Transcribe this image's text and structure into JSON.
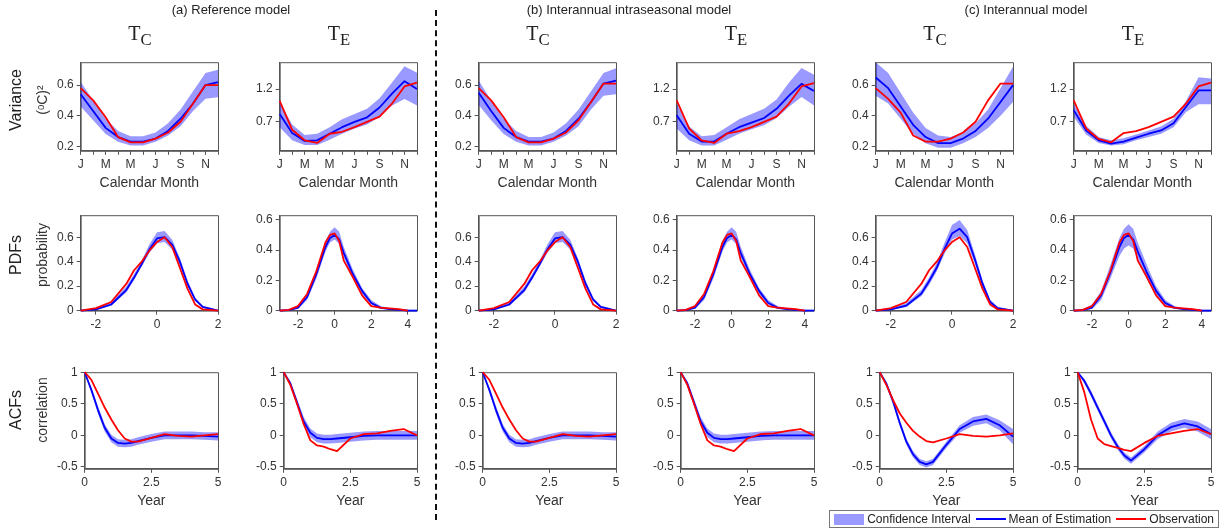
{
  "chart_data": [
    {
      "type": "line",
      "subtitle": "(a) Reference model",
      "title": "T$_{C}$",
      "xlabel": "Calendar Month",
      "ylabel": "(ᵒC)²",
      "annotations": [
        "Variance"
      ],
      "categories": [
        "J",
        null,
        "M",
        null,
        "M",
        null,
        "J",
        null,
        "S",
        null,
        "N",
        null
      ],
      "ylim": [
        0.17,
        0.75
      ],
      "yticks": [
        0.2,
        0.4,
        0.6
      ],
      "series": [
        {
          "color": "#0000ff",
          "values": [
            0.54,
            0.43,
            0.32,
            0.26,
            0.23,
            0.23,
            0.25,
            0.3,
            0.38,
            0.48,
            0.6,
            0.62
          ],
          "lower": [
            0.46,
            0.37,
            0.28,
            0.23,
            0.205,
            0.205,
            0.23,
            0.27,
            0.33,
            0.43,
            0.51,
            0.52
          ],
          "upper": [
            0.62,
            0.5,
            0.38,
            0.3,
            0.265,
            0.265,
            0.29,
            0.35,
            0.44,
            0.56,
            0.68,
            0.7
          ]
        },
        {
          "color": "#ff0000",
          "values": [
            0.58,
            0.5,
            0.39,
            0.26,
            0.225,
            0.225,
            0.25,
            0.29,
            0.36,
            0.48,
            0.6,
            0.6
          ]
        }
      ]
    },
    {
      "type": "line",
      "title": "T$_{E}$",
      "xlabel": "Calendar Month",
      "categories": [
        "J",
        null,
        "M",
        null,
        "M",
        null,
        "J",
        null,
        "S",
        null,
        "N",
        null
      ],
      "ylim": [
        0.26,
        1.61
      ],
      "yticks": [
        0.7,
        1.2
      ],
      "series": [
        {
          "color": "#0000ff",
          "values": [
            0.82,
            0.53,
            0.41,
            0.42,
            0.52,
            0.62,
            0.7,
            0.77,
            0.92,
            1.13,
            1.32,
            1.2
          ],
          "lower": [
            0.62,
            0.42,
            0.35,
            0.35,
            0.43,
            0.52,
            0.6,
            0.66,
            0.78,
            0.95,
            1.05,
            0.95
          ],
          "upper": [
            1.0,
            0.66,
            0.5,
            0.52,
            0.62,
            0.74,
            0.82,
            0.9,
            1.06,
            1.3,
            1.55,
            1.45
          ]
        },
        {
          "color": "#ff0000",
          "values": [
            1.02,
            0.58,
            0.42,
            0.38,
            0.52,
            0.55,
            0.62,
            0.7,
            0.78,
            0.98,
            1.24,
            1.3
          ]
        }
      ]
    },
    {
      "type": "line",
      "subtitle": "(b) Interannual intraseasonal model",
      "title": "T$_{C}$",
      "xlabel": "Calendar Month",
      "categories": [
        "J",
        null,
        "M",
        null,
        "M",
        null,
        "J",
        null,
        "S",
        null,
        "N",
        null
      ],
      "ylim": [
        0.17,
        0.75
      ],
      "yticks": [
        0.2,
        0.4,
        0.6
      ],
      "series": [
        {
          "color": "#0000ff",
          "values": [
            0.55,
            0.43,
            0.32,
            0.26,
            0.23,
            0.23,
            0.25,
            0.3,
            0.38,
            0.49,
            0.61,
            0.63
          ],
          "lower": [
            0.47,
            0.37,
            0.28,
            0.23,
            0.205,
            0.205,
            0.23,
            0.27,
            0.33,
            0.44,
            0.53,
            0.54
          ],
          "upper": [
            0.63,
            0.5,
            0.38,
            0.3,
            0.26,
            0.26,
            0.29,
            0.35,
            0.44,
            0.56,
            0.68,
            0.71
          ]
        },
        {
          "color": "#ff0000",
          "values": [
            0.58,
            0.5,
            0.39,
            0.26,
            0.225,
            0.225,
            0.25,
            0.29,
            0.37,
            0.49,
            0.61,
            0.61
          ]
        }
      ]
    },
    {
      "type": "line",
      "title": "T$_{E}$",
      "xlabel": "Calendar Month",
      "categories": [
        "J",
        null,
        "M",
        null,
        "M",
        null,
        "J",
        null,
        "S",
        null,
        "N",
        null
      ],
      "ylim": [
        0.26,
        1.61
      ],
      "yticks": [
        0.7,
        1.2
      ],
      "series": [
        {
          "color": "#0000ff",
          "values": [
            0.8,
            0.52,
            0.4,
            0.4,
            0.52,
            0.62,
            0.69,
            0.76,
            0.9,
            1.1,
            1.28,
            1.17
          ],
          "lower": [
            0.6,
            0.42,
            0.34,
            0.34,
            0.43,
            0.52,
            0.59,
            0.65,
            0.76,
            0.93,
            1.08,
            0.95
          ],
          "upper": [
            0.98,
            0.63,
            0.48,
            0.5,
            0.62,
            0.74,
            0.82,
            0.9,
            1.04,
            1.3,
            1.52,
            1.42
          ]
        },
        {
          "color": "#ff0000",
          "values": [
            1.03,
            0.6,
            0.42,
            0.38,
            0.52,
            0.56,
            0.62,
            0.7,
            0.78,
            0.98,
            1.24,
            1.29
          ]
        }
      ]
    },
    {
      "type": "line",
      "subtitle": "(c) Interannual model",
      "title": "T$_{C}$",
      "xlabel": "Calendar Month",
      "categories": [
        "J",
        null,
        "M",
        null,
        "M",
        null,
        "J",
        null,
        "S",
        null,
        "N",
        null
      ],
      "ylim": [
        0.17,
        0.75
      ],
      "yticks": [
        0.2,
        0.4,
        0.6
      ],
      "series": [
        {
          "color": "#0000ff",
          "values": [
            0.65,
            0.58,
            0.46,
            0.34,
            0.26,
            0.22,
            0.22,
            0.25,
            0.3,
            0.38,
            0.49,
            0.6
          ],
          "lower": [
            0.53,
            0.48,
            0.38,
            0.28,
            0.22,
            0.19,
            0.19,
            0.22,
            0.26,
            0.32,
            0.4,
            0.49
          ],
          "upper": [
            0.75,
            0.68,
            0.55,
            0.42,
            0.32,
            0.27,
            0.26,
            0.29,
            0.35,
            0.44,
            0.58,
            0.72
          ]
        },
        {
          "color": "#ff0000",
          "values": [
            0.58,
            0.51,
            0.42,
            0.27,
            0.23,
            0.23,
            0.25,
            0.29,
            0.36,
            0.5,
            0.61,
            0.61
          ]
        }
      ]
    },
    {
      "type": "line",
      "title": "T$_{E}$",
      "xlabel": "Calendar Month",
      "categories": [
        "J",
        null,
        "M",
        null,
        "M",
        null,
        "J",
        null,
        "S",
        null,
        "N",
        null
      ],
      "ylim": [
        0.26,
        1.61
      ],
      "yticks": [
        0.7,
        1.2
      ],
      "series": [
        {
          "color": "#0000ff",
          "values": [
            0.88,
            0.57,
            0.42,
            0.37,
            0.4,
            0.46,
            0.52,
            0.57,
            0.68,
            0.93,
            1.18,
            1.18
          ],
          "lower": [
            0.78,
            0.51,
            0.38,
            0.34,
            0.36,
            0.42,
            0.47,
            0.52,
            0.62,
            0.85,
            0.97,
            0.97
          ],
          "upper": [
            0.97,
            0.64,
            0.47,
            0.42,
            0.45,
            0.51,
            0.57,
            0.63,
            0.75,
            1.02,
            1.38,
            1.36
          ]
        },
        {
          "color": "#ff0000",
          "values": [
            1.03,
            0.6,
            0.44,
            0.39,
            0.53,
            0.56,
            0.62,
            0.7,
            0.78,
            0.98,
            1.24,
            1.3
          ]
        }
      ]
    },
    {
      "type": "line",
      "ylabel": "probability",
      "annotations": [
        "PDFs"
      ],
      "x": [
        -2.5,
        -2,
        -1.5,
        -1,
        -0.75,
        -0.5,
        -0.25,
        0,
        0.25,
        0.5,
        0.75,
        1,
        1.25,
        1.5,
        2
      ],
      "xlim": [
        -2.5,
        2
      ],
      "xticks": [
        -2,
        0,
        2
      ],
      "ylim": [
        0,
        0.78
      ],
      "yticks": [
        0,
        0.2,
        0.4,
        0.6
      ],
      "series": [
        {
          "color": "#0000ff",
          "values": [
            0,
            0.01,
            0.05,
            0.17,
            0.27,
            0.38,
            0.5,
            0.59,
            0.6,
            0.54,
            0.4,
            0.22,
            0.09,
            0.03,
            0
          ],
          "lower": [
            0,
            0.005,
            0.04,
            0.15,
            0.25,
            0.36,
            0.47,
            0.55,
            0.56,
            0.5,
            0.37,
            0.2,
            0.08,
            0.02,
            0
          ],
          "upper": [
            0.005,
            0.02,
            0.07,
            0.2,
            0.3,
            0.41,
            0.54,
            0.64,
            0.65,
            0.58,
            0.43,
            0.25,
            0.11,
            0.04,
            0.005
          ]
        },
        {
          "color": "#ff0000",
          "values": [
            0,
            0.02,
            0.07,
            0.22,
            0.33,
            0.4,
            0.49,
            0.56,
            0.6,
            0.52,
            0.35,
            0.18,
            0.05,
            0.01,
            0
          ]
        }
      ]
    },
    {
      "type": "line",
      "x": [
        -3,
        -2.5,
        -2,
        -1.5,
        -1,
        -0.5,
        -0.25,
        0,
        0.25,
        0.5,
        1,
        1.5,
        2,
        2.5,
        3,
        3.5,
        4,
        4.5
      ],
      "xlim": [
        -3,
        4.5
      ],
      "xticks": [
        -2,
        0,
        2,
        4
      ],
      "ylim": [
        0,
        0.63
      ],
      "yticks": [
        0,
        0.2,
        0.4,
        0.6
      ],
      "series": [
        {
          "color": "#0000ff",
          "values": [
            0,
            0.003,
            0.02,
            0.09,
            0.24,
            0.42,
            0.48,
            0.5,
            0.47,
            0.38,
            0.24,
            0.13,
            0.05,
            0.02,
            0.01,
            0.005,
            0,
            0
          ],
          "lower": [
            0,
            0,
            0.01,
            0.07,
            0.21,
            0.39,
            0.45,
            0.47,
            0.44,
            0.35,
            0.21,
            0.11,
            0.04,
            0.01,
            0.005,
            0,
            0,
            0
          ],
          "upper": [
            0.005,
            0.01,
            0.03,
            0.11,
            0.27,
            0.46,
            0.52,
            0.55,
            0.52,
            0.42,
            0.27,
            0.15,
            0.07,
            0.03,
            0.015,
            0.01,
            0.005,
            0.005
          ]
        },
        {
          "color": "#ff0000",
          "values": [
            0,
            0.005,
            0.03,
            0.11,
            0.26,
            0.45,
            0.5,
            0.51,
            0.46,
            0.33,
            0.22,
            0.1,
            0.03,
            0.02,
            0.015,
            0.01,
            0,
            null
          ]
        }
      ]
    },
    {
      "type": "line",
      "x": [
        -2.5,
        -2,
        -1.5,
        -1,
        -0.75,
        -0.5,
        -0.25,
        0,
        0.25,
        0.5,
        0.75,
        1,
        1.25,
        1.5,
        2
      ],
      "xlim": [
        -2.5,
        2
      ],
      "xticks": [
        -2,
        0,
        2
      ],
      "ylim": [
        0,
        0.78
      ],
      "yticks": [
        0,
        0.2,
        0.4,
        0.6
      ],
      "series": [
        {
          "color": "#0000ff",
          "values": [
            0,
            0.01,
            0.05,
            0.17,
            0.27,
            0.38,
            0.5,
            0.59,
            0.6,
            0.54,
            0.4,
            0.22,
            0.09,
            0.03,
            0
          ],
          "lower": [
            0,
            0.005,
            0.04,
            0.15,
            0.25,
            0.36,
            0.47,
            0.55,
            0.56,
            0.5,
            0.37,
            0.2,
            0.08,
            0.02,
            0
          ],
          "upper": [
            0.005,
            0.02,
            0.07,
            0.2,
            0.3,
            0.41,
            0.54,
            0.64,
            0.65,
            0.58,
            0.43,
            0.25,
            0.11,
            0.04,
            0.005
          ]
        },
        {
          "color": "#ff0000",
          "values": [
            0,
            0.02,
            0.07,
            0.22,
            0.33,
            0.4,
            0.49,
            0.56,
            0.6,
            0.52,
            0.35,
            0.18,
            0.05,
            0.01,
            0
          ]
        }
      ]
    },
    {
      "type": "line",
      "x": [
        -3,
        -2.5,
        -2,
        -1.5,
        -1,
        -0.5,
        -0.25,
        0,
        0.25,
        0.5,
        1,
        1.5,
        2,
        2.5,
        3,
        3.5,
        4,
        4.5
      ],
      "xlim": [
        -3,
        4.5
      ],
      "xticks": [
        -2,
        0,
        2,
        4
      ],
      "ylim": [
        0,
        0.63
      ],
      "yticks": [
        0,
        0.2,
        0.4,
        0.6
      ],
      "series": [
        {
          "color": "#0000ff",
          "values": [
            0,
            0.003,
            0.02,
            0.09,
            0.24,
            0.42,
            0.48,
            0.5,
            0.47,
            0.38,
            0.24,
            0.13,
            0.05,
            0.02,
            0.01,
            0.005,
            0,
            0
          ],
          "lower": [
            0,
            0,
            0.01,
            0.07,
            0.21,
            0.39,
            0.45,
            0.47,
            0.44,
            0.35,
            0.21,
            0.11,
            0.04,
            0.01,
            0.005,
            0,
            0,
            0
          ],
          "upper": [
            0.005,
            0.01,
            0.03,
            0.11,
            0.27,
            0.46,
            0.52,
            0.55,
            0.52,
            0.42,
            0.27,
            0.15,
            0.07,
            0.03,
            0.015,
            0.01,
            0.005,
            0.005
          ]
        },
        {
          "color": "#ff0000",
          "values": [
            0,
            0.005,
            0.03,
            0.11,
            0.26,
            0.45,
            0.5,
            0.51,
            0.46,
            0.33,
            0.22,
            0.1,
            0.03,
            0.02,
            0.015,
            0.01,
            0,
            null
          ]
        }
      ]
    },
    {
      "type": "line",
      "x": [
        -2.5,
        -2,
        -1.5,
        -1,
        -0.75,
        -0.5,
        -0.25,
        0,
        0.25,
        0.5,
        0.75,
        1,
        1.25,
        1.5,
        2
      ],
      "xlim": [
        -2.5,
        2
      ],
      "xticks": [
        -2,
        0,
        2
      ],
      "ylim": [
        0,
        0.78
      ],
      "yticks": [
        0,
        0.2,
        0.4,
        0.6
      ],
      "series": [
        {
          "color": "#0000ff",
          "values": [
            0,
            0.01,
            0.04,
            0.14,
            0.24,
            0.35,
            0.5,
            0.63,
            0.67,
            0.6,
            0.42,
            0.22,
            0.07,
            0.02,
            0
          ],
          "lower": [
            0,
            0.005,
            0.03,
            0.12,
            0.21,
            0.32,
            0.46,
            0.58,
            0.61,
            0.55,
            0.38,
            0.19,
            0.05,
            0.01,
            0
          ],
          "upper": [
            0.01,
            0.02,
            0.06,
            0.17,
            0.27,
            0.39,
            0.55,
            0.7,
            0.74,
            0.66,
            0.46,
            0.25,
            0.09,
            0.03,
            0.005
          ]
        },
        {
          "color": "#ff0000",
          "values": [
            0,
            0.02,
            0.07,
            0.22,
            0.33,
            0.4,
            0.49,
            0.56,
            0.6,
            0.52,
            0.35,
            0.18,
            0.05,
            0.01,
            0
          ]
        }
      ]
    },
    {
      "type": "line",
      "x": [
        -3,
        -2.5,
        -2,
        -1.5,
        -1,
        -0.5,
        -0.25,
        0,
        0.25,
        0.5,
        1,
        1.5,
        2,
        2.5,
        3,
        3.5,
        4,
        4.5
      ],
      "xlim": [
        -3,
        4.5
      ],
      "xticks": [
        -2,
        0,
        2,
        4
      ],
      "ylim": [
        0,
        0.63
      ],
      "yticks": [
        0,
        0.2,
        0.4,
        0.6
      ],
      "series": [
        {
          "color": "#0000ff",
          "values": [
            0,
            0.003,
            0.02,
            0.1,
            0.25,
            0.42,
            0.48,
            0.5,
            0.47,
            0.39,
            0.25,
            0.13,
            0.05,
            0.02,
            0.01,
            0.005,
            0,
            0
          ],
          "lower": [
            0,
            0,
            0.01,
            0.07,
            0.21,
            0.36,
            0.41,
            0.43,
            0.41,
            0.34,
            0.21,
            0.1,
            0.03,
            0.01,
            0.005,
            0,
            0,
            0
          ],
          "upper": [
            0.005,
            0.01,
            0.04,
            0.13,
            0.3,
            0.48,
            0.54,
            0.57,
            0.54,
            0.45,
            0.3,
            0.16,
            0.07,
            0.03,
            0.015,
            0.01,
            0.005,
            0.005
          ]
        },
        {
          "color": "#ff0000",
          "values": [
            0,
            0.005,
            0.03,
            0.11,
            0.26,
            0.45,
            0.5,
            0.51,
            0.46,
            0.33,
            0.22,
            0.1,
            0.03,
            0.02,
            0.015,
            0.01,
            0,
            null
          ]
        }
      ]
    },
    {
      "type": "line",
      "xlabel": "Year",
      "ylabel": "correlation",
      "annotations": [
        "ACFs"
      ],
      "x": [
        0,
        0.25,
        0.5,
        0.75,
        1,
        1.25,
        1.5,
        1.75,
        2,
        2.5,
        3,
        3.5,
        4,
        4.5,
        5
      ],
      "xlim": [
        0,
        5
      ],
      "xticks": [
        0,
        2.5,
        5
      ],
      "ylim": [
        -0.53,
        1
      ],
      "yticks": [
        -0.5,
        0,
        0.5,
        1
      ],
      "series": [
        {
          "color": "#0000ff",
          "values": [
            1,
            0.72,
            0.4,
            0.12,
            -0.05,
            -0.12,
            -0.13,
            -0.12,
            -0.09,
            -0.04,
            0,
            0,
            0,
            -0.01,
            -0.02
          ],
          "lower": [
            1,
            0.68,
            0.34,
            0.06,
            -0.11,
            -0.18,
            -0.19,
            -0.18,
            -0.15,
            -0.1,
            -0.06,
            -0.06,
            -0.06,
            -0.07,
            -0.08
          ],
          "upper": [
            1,
            0.76,
            0.46,
            0.18,
            0.01,
            -0.06,
            -0.07,
            -0.06,
            -0.03,
            0.02,
            0.06,
            0.06,
            0.06,
            0.05,
            0.05
          ]
        },
        {
          "color": "#ff0000",
          "values": [
            1,
            0.88,
            0.66,
            0.44,
            0.25,
            0.08,
            -0.05,
            -0.1,
            -0.1,
            -0.04,
            0.02,
            -0.01,
            -0.02,
            0,
            0.02
          ]
        }
      ]
    },
    {
      "type": "line",
      "xlabel": "Year",
      "x": [
        0,
        0.25,
        0.5,
        0.75,
        1,
        1.25,
        1.5,
        1.75,
        2,
        2.5,
        3,
        3.5,
        4,
        4.5,
        5
      ],
      "xlim": [
        0,
        5
      ],
      "xticks": [
        0,
        2.5,
        5
      ],
      "ylim": [
        -0.53,
        1
      ],
      "yticks": [
        -0.5,
        0,
        0.5,
        1
      ],
      "series": [
        {
          "color": "#0000ff",
          "values": [
            1,
            0.82,
            0.52,
            0.22,
            0.04,
            -0.04,
            -0.06,
            -0.06,
            -0.05,
            -0.03,
            -0.01,
            0,
            0,
            0,
            0
          ],
          "lower": [
            1,
            0.78,
            0.46,
            0.15,
            -0.03,
            -0.11,
            -0.13,
            -0.13,
            -0.12,
            -0.1,
            -0.08,
            -0.07,
            -0.07,
            -0.07,
            -0.07
          ],
          "upper": [
            1,
            0.86,
            0.58,
            0.29,
            0.11,
            0.03,
            0.01,
            0.01,
            0.02,
            0.04,
            0.06,
            0.07,
            0.07,
            0.07,
            0.07
          ]
        },
        {
          "color": "#ff0000",
          "values": [
            1,
            0.8,
            0.5,
            0.18,
            -0.08,
            -0.16,
            -0.18,
            -0.22,
            -0.25,
            -0.05,
            0.02,
            0.03,
            0.07,
            0.1,
            0
          ]
        }
      ]
    },
    {
      "type": "line",
      "xlabel": "Year",
      "x": [
        0,
        0.25,
        0.5,
        0.75,
        1,
        1.25,
        1.5,
        1.75,
        2,
        2.5,
        3,
        3.5,
        4,
        4.5,
        5
      ],
      "xlim": [
        0,
        5
      ],
      "xticks": [
        0,
        2.5,
        5
      ],
      "ylim": [
        -0.53,
        1
      ],
      "yticks": [
        -0.5,
        0,
        0.5,
        1
      ],
      "series": [
        {
          "color": "#0000ff",
          "values": [
            1,
            0.72,
            0.4,
            0.12,
            -0.05,
            -0.12,
            -0.13,
            -0.12,
            -0.09,
            -0.04,
            0,
            0,
            0,
            -0.01,
            -0.02
          ],
          "lower": [
            1,
            0.68,
            0.34,
            0.06,
            -0.11,
            -0.18,
            -0.19,
            -0.18,
            -0.15,
            -0.1,
            -0.06,
            -0.06,
            -0.06,
            -0.07,
            -0.08
          ],
          "upper": [
            1,
            0.76,
            0.46,
            0.18,
            0.01,
            -0.06,
            -0.07,
            -0.06,
            -0.03,
            0.02,
            0.06,
            0.06,
            0.06,
            0.05,
            0.05
          ]
        },
        {
          "color": "#ff0000",
          "values": [
            1,
            0.88,
            0.66,
            0.44,
            0.25,
            0.08,
            -0.05,
            -0.1,
            -0.1,
            -0.04,
            0.02,
            -0.01,
            -0.02,
            0,
            0.02
          ]
        }
      ]
    },
    {
      "type": "line",
      "xlabel": "Year",
      "x": [
        0,
        0.25,
        0.5,
        0.75,
        1,
        1.25,
        1.5,
        1.75,
        2,
        2.5,
        3,
        3.5,
        4,
        4.5,
        5
      ],
      "xlim": [
        0,
        5
      ],
      "xticks": [
        0,
        2.5,
        5
      ],
      "ylim": [
        -0.53,
        1
      ],
      "yticks": [
        -0.5,
        0,
        0.5,
        1
      ],
      "series": [
        {
          "color": "#0000ff",
          "values": [
            1,
            0.82,
            0.52,
            0.22,
            0.04,
            -0.04,
            -0.06,
            -0.06,
            -0.05,
            -0.03,
            -0.01,
            0,
            0,
            0,
            0
          ],
          "lower": [
            1,
            0.78,
            0.46,
            0.15,
            -0.03,
            -0.11,
            -0.13,
            -0.13,
            -0.12,
            -0.1,
            -0.08,
            -0.07,
            -0.07,
            -0.07,
            -0.07
          ],
          "upper": [
            1,
            0.86,
            0.58,
            0.29,
            0.11,
            0.03,
            0.01,
            0.01,
            0.02,
            0.04,
            0.06,
            0.07,
            0.07,
            0.07,
            0.07
          ]
        },
        {
          "color": "#ff0000",
          "values": [
            1,
            0.8,
            0.5,
            0.18,
            -0.08,
            -0.16,
            -0.18,
            -0.22,
            -0.25,
            -0.05,
            0.02,
            0.03,
            0.07,
            0.1,
            0
          ]
        }
      ]
    },
    {
      "type": "line",
      "xlabel": "Year",
      "x": [
        0,
        0.25,
        0.5,
        0.75,
        1,
        1.25,
        1.5,
        1.75,
        2,
        2.5,
        3,
        3.5,
        4,
        4.5,
        5
      ],
      "xlim": [
        0,
        5
      ],
      "xticks": [
        0,
        2.5,
        5
      ],
      "ylim": [
        -0.53,
        1
      ],
      "yticks": [
        -0.5,
        0,
        0.5,
        1
      ],
      "series": [
        {
          "color": "#0000ff",
          "values": [
            1,
            0.82,
            0.54,
            0.2,
            -0.1,
            -0.3,
            -0.42,
            -0.46,
            -0.42,
            -0.15,
            0.1,
            0.22,
            0.26,
            0.16,
            -0.02
          ],
          "lower": [
            1,
            0.79,
            0.49,
            0.15,
            -0.15,
            -0.35,
            -0.47,
            -0.51,
            -0.47,
            -0.2,
            0.04,
            0.15,
            0.19,
            0.08,
            -0.14
          ],
          "upper": [
            1,
            0.85,
            0.59,
            0.25,
            -0.05,
            -0.25,
            -0.37,
            -0.41,
            -0.37,
            -0.1,
            0.16,
            0.29,
            0.33,
            0.24,
            0.1
          ]
        },
        {
          "color": "#ff0000",
          "values": [
            1,
            0.8,
            0.56,
            0.35,
            0.2,
            0.07,
            -0.02,
            -0.09,
            -0.11,
            -0.05,
            0.02,
            -0.01,
            -0.02,
            0,
            0.03
          ]
        }
      ]
    },
    {
      "type": "line",
      "xlabel": "Year",
      "legend": "bottom left",
      "annotations": [
        "Confidence Interval"
      ],
      "x": [
        0,
        0.25,
        0.5,
        0.75,
        1,
        1.25,
        1.5,
        1.75,
        2,
        2.5,
        3,
        3.5,
        4,
        4.5,
        5
      ],
      "xlim": [
        0,
        5
      ],
      "xticks": [
        0,
        2.5,
        5
      ],
      "ylim": [
        -0.53,
        1
      ],
      "yticks": [
        -0.5,
        0,
        0.5,
        1
      ],
      "series": [
        {
          "name": "Mean of Estimation",
          "color": "#0000ff",
          "values": [
            1,
            0.86,
            0.66,
            0.44,
            0.22,
            0,
            -0.18,
            -0.32,
            -0.4,
            -0.22,
            0,
            0.13,
            0.19,
            0.14,
            0.02
          ],
          "lower": [
            1,
            0.82,
            0.61,
            0.39,
            0.17,
            -0.05,
            -0.23,
            -0.37,
            -0.45,
            -0.27,
            -0.06,
            0.06,
            0.12,
            0.06,
            -0.06
          ],
          "upper": [
            1,
            0.9,
            0.71,
            0.49,
            0.27,
            0.05,
            -0.13,
            -0.27,
            -0.35,
            -0.17,
            0.06,
            0.2,
            0.26,
            0.22,
            0.1
          ]
        },
        {
          "name": "Observation",
          "color": "#ff0000",
          "values": [
            1,
            0.68,
            0.25,
            -0.05,
            -0.14,
            -0.17,
            -0.2,
            -0.23,
            -0.25,
            -0.12,
            -0.01,
            0.03,
            0.07,
            0.1,
            0.02
          ]
        }
      ]
    }
  ]
}
